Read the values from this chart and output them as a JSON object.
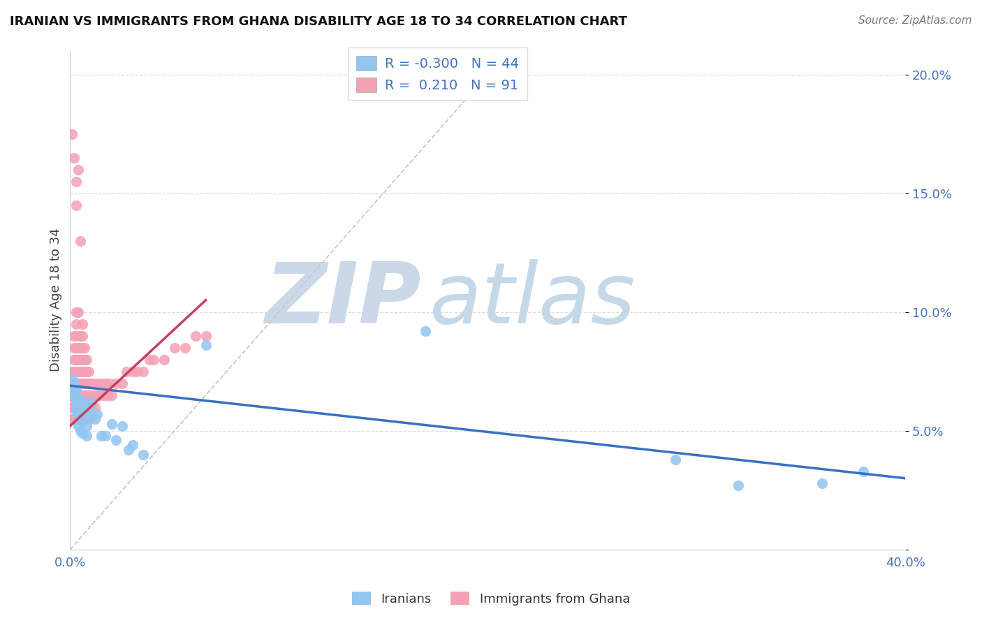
{
  "title": "IRANIAN VS IMMIGRANTS FROM GHANA DISABILITY AGE 18 TO 34 CORRELATION CHART",
  "source": "Source: ZipAtlas.com",
  "ylabel": "Disability Age 18 to 34",
  "xlim": [
    0.0,
    0.4
  ],
  "ylim": [
    0.0,
    0.21
  ],
  "color_iranians": "#92C5F0",
  "color_ghana": "#F4A0B5",
  "line_color_iranians": "#3A6FC4",
  "line_color_ghana": "#C44060",
  "ref_line_color": "#C8C8C8",
  "watermark_zip": "ZIP",
  "watermark_atlas": "atlas",
  "watermark_color_zip": "#CBD8E8",
  "watermark_color_atlas": "#C5D8E8",
  "legend_R_iranians": "-0.300",
  "legend_N_iranians": "44",
  "legend_R_ghana": "0.210",
  "legend_N_ghana": "91",
  "iranians_x": [
    0.001,
    0.001,
    0.001,
    0.002,
    0.002,
    0.002,
    0.002,
    0.003,
    0.003,
    0.003,
    0.003,
    0.003,
    0.004,
    0.004,
    0.004,
    0.005,
    0.005,
    0.005,
    0.006,
    0.006,
    0.006,
    0.007,
    0.007,
    0.008,
    0.008,
    0.009,
    0.01,
    0.01,
    0.012,
    0.013,
    0.015,
    0.017,
    0.02,
    0.022,
    0.025,
    0.028,
    0.03,
    0.035,
    0.065,
    0.17,
    0.29,
    0.32,
    0.36,
    0.38
  ],
  "iranians_y": [
    0.07,
    0.065,
    0.072,
    0.068,
    0.064,
    0.07,
    0.066,
    0.063,
    0.058,
    0.065,
    0.061,
    0.068,
    0.064,
    0.057,
    0.052,
    0.061,
    0.055,
    0.05,
    0.059,
    0.054,
    0.049,
    0.062,
    0.055,
    0.052,
    0.048,
    0.059,
    0.062,
    0.056,
    0.055,
    0.057,
    0.048,
    0.048,
    0.053,
    0.046,
    0.052,
    0.042,
    0.044,
    0.04,
    0.086,
    0.092,
    0.038,
    0.027,
    0.028,
    0.033
  ],
  "ghana_x": [
    0.001,
    0.001,
    0.001,
    0.001,
    0.001,
    0.002,
    0.002,
    0.002,
    0.002,
    0.002,
    0.002,
    0.002,
    0.002,
    0.003,
    0.003,
    0.003,
    0.003,
    0.003,
    0.003,
    0.003,
    0.003,
    0.003,
    0.003,
    0.004,
    0.004,
    0.004,
    0.004,
    0.004,
    0.004,
    0.004,
    0.004,
    0.005,
    0.005,
    0.005,
    0.005,
    0.005,
    0.005,
    0.005,
    0.005,
    0.006,
    0.006,
    0.006,
    0.006,
    0.006,
    0.006,
    0.006,
    0.006,
    0.007,
    0.007,
    0.007,
    0.007,
    0.007,
    0.007,
    0.008,
    0.008,
    0.008,
    0.008,
    0.008,
    0.009,
    0.009,
    0.009,
    0.009,
    0.01,
    0.01,
    0.01,
    0.011,
    0.011,
    0.012,
    0.012,
    0.013,
    0.013,
    0.014,
    0.015,
    0.016,
    0.017,
    0.018,
    0.019,
    0.02,
    0.022,
    0.025,
    0.027,
    0.03,
    0.032,
    0.035,
    0.038,
    0.04,
    0.045,
    0.05,
    0.055,
    0.06,
    0.065
  ],
  "ghana_y": [
    0.065,
    0.07,
    0.075,
    0.055,
    0.06,
    0.065,
    0.07,
    0.075,
    0.055,
    0.06,
    0.08,
    0.085,
    0.09,
    0.055,
    0.06,
    0.065,
    0.07,
    0.075,
    0.08,
    0.085,
    0.09,
    0.095,
    0.1,
    0.055,
    0.06,
    0.065,
    0.07,
    0.075,
    0.08,
    0.085,
    0.1,
    0.055,
    0.06,
    0.065,
    0.07,
    0.075,
    0.08,
    0.085,
    0.09,
    0.055,
    0.065,
    0.07,
    0.075,
    0.08,
    0.085,
    0.09,
    0.095,
    0.06,
    0.065,
    0.07,
    0.075,
    0.08,
    0.085,
    0.06,
    0.065,
    0.07,
    0.075,
    0.08,
    0.055,
    0.065,
    0.07,
    0.075,
    0.06,
    0.065,
    0.07,
    0.065,
    0.07,
    0.06,
    0.065,
    0.065,
    0.07,
    0.065,
    0.07,
    0.065,
    0.07,
    0.065,
    0.07,
    0.065,
    0.07,
    0.07,
    0.075,
    0.075,
    0.075,
    0.075,
    0.08,
    0.08,
    0.08,
    0.085,
    0.085,
    0.09,
    0.09
  ],
  "ghana_outliers_x": [
    0.001,
    0.002,
    0.003,
    0.003,
    0.004,
    0.005
  ],
  "ghana_outliers_y": [
    0.175,
    0.165,
    0.155,
    0.145,
    0.16,
    0.13
  ]
}
